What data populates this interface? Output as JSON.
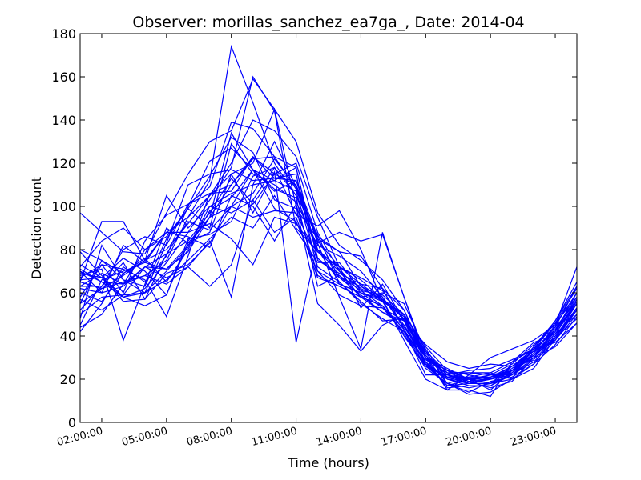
{
  "chart_data": {
    "type": "line",
    "title": "Observer: morillas_sanchez_ea7ga_, Date: 2014-04",
    "xlabel": "Time (hours)",
    "ylabel": "Detection count",
    "xlim": [
      1.0,
      24.0
    ],
    "ylim": [
      0,
      180
    ],
    "yticks": [
      0,
      20,
      40,
      60,
      80,
      100,
      120,
      140,
      160,
      180
    ],
    "xticks": [
      {
        "value": 2,
        "label": "02:00:00"
      },
      {
        "value": 5,
        "label": "05:00:00"
      },
      {
        "value": 8,
        "label": "08:00:00"
      },
      {
        "value": 11,
        "label": "11:00:00"
      },
      {
        "value": 14,
        "label": "14:00:00"
      },
      {
        "value": 17,
        "label": "17:00:00"
      },
      {
        "value": 20,
        "label": "20:00:00"
      },
      {
        "value": 23,
        "label": "23:00:00"
      }
    ],
    "grid": false,
    "line_color": "#0000ff",
    "x": [
      1,
      2,
      3,
      4,
      5,
      6,
      7,
      8,
      9,
      10,
      11,
      12,
      13,
      14,
      15,
      16,
      17,
      18,
      19,
      20,
      21,
      22,
      23,
      24
    ],
    "series": [
      {
        "values": [
          97,
          88,
          79,
          78,
          97,
          115,
          130,
          135,
          159,
          145,
          130,
          97,
          82,
          75,
          66,
          52,
          30,
          22,
          20,
          22,
          22,
          32,
          45,
          60
        ]
      },
      {
        "values": [
          60,
          56,
          69,
          75,
          88,
          95,
          112,
          174,
          148,
          120,
          105,
          87,
          64,
          60,
          53,
          42,
          28,
          17,
          18,
          18,
          20,
          25,
          39,
          55
        ]
      },
      {
        "values": [
          70,
          65,
          58,
          62,
          74,
          88,
          103,
          118,
          160,
          144,
          90,
          79,
          70,
          62,
          57,
          48,
          32,
          22,
          18,
          20,
          24,
          32,
          42,
          56
        ]
      },
      {
        "values": [
          72,
          84,
          90,
          80,
          86,
          99,
          114,
          132,
          125,
          103,
          99,
          85,
          67,
          63,
          58,
          44,
          30,
          24,
          20,
          21,
          26,
          34,
          46,
          62
        ]
      },
      {
        "values": [
          65,
          62,
          68,
          75,
          80,
          92,
          105,
          120,
          140,
          135,
          123,
          95,
          72,
          66,
          57,
          50,
          34,
          20,
          17,
          17,
          22,
          30,
          41,
          55
        ]
      },
      {
        "values": [
          45,
          66,
          70,
          74,
          71,
          82,
          95,
          110,
          123,
          115,
          120,
          88,
          70,
          58,
          51,
          47,
          33,
          18,
          14,
          19,
          21,
          27,
          36,
          49
        ]
      },
      {
        "values": [
          58,
          73,
          60,
          84,
          96,
          101,
          109,
          139,
          136,
          123,
          108,
          80,
          65,
          55,
          48,
          42,
          26,
          18,
          16,
          18,
          24,
          35,
          47,
          63
        ]
      },
      {
        "values": [
          42,
          55,
          72,
          65,
          77,
          100,
          121,
          127,
          117,
          99,
          93,
          70,
          64,
          60,
          56,
          49,
          30,
          24,
          18,
          21,
          24,
          30,
          40,
          53
        ]
      },
      {
        "values": [
          80,
          75,
          66,
          60,
          83,
          110,
          115,
          117,
          112,
          113,
          115,
          70,
          59,
          54,
          53,
          47,
          26,
          22,
          19,
          22,
          27,
          36,
          44,
          56
        ]
      },
      {
        "values": [
          68,
          71,
          38,
          64,
          90,
          83,
          95,
          100,
          117,
          108,
          104,
          63,
          68,
          61,
          54,
          43,
          27,
          21,
          23,
          22,
          24,
          33,
          43,
          58
        ]
      },
      {
        "values": [
          52,
          63,
          80,
          86,
          82,
          101,
          106,
          110,
          122,
          123,
          118,
          76,
          67,
          59,
          51,
          45,
          30,
          21,
          18,
          18,
          22,
          28,
          38,
          50
        ]
      },
      {
        "values": [
          48,
          82,
          66,
          63,
          85,
          99,
          90,
          129,
          115,
          110,
          102,
          82,
          77,
          70,
          58,
          45,
          27,
          17,
          20,
          18,
          26,
          31,
          41,
          50
        ]
      },
      {
        "values": [
          62,
          60,
          63,
          72,
          78,
          84,
          97,
          113,
          101,
          115,
          110,
          85,
          79,
          77,
          62,
          52,
          31,
          22,
          19,
          16,
          19,
          30,
          35,
          46
        ]
      },
      {
        "values": [
          55,
          75,
          69,
          76,
          65,
          80,
          98,
          104,
          117,
          107,
          112,
          86,
          79,
          63,
          56,
          50,
          35,
          24,
          22,
          20,
          23,
          31,
          38,
          53
        ]
      },
      {
        "values": [
          73,
          67,
          56,
          57,
          78,
          93,
          89,
          100,
          95,
          98,
          97,
          76,
          68,
          58,
          60,
          55,
          33,
          23,
          23,
          23,
          20,
          35,
          46,
          58
        ]
      },
      {
        "values": [
          66,
          67,
          76,
          70,
          59,
          85,
          87,
          93,
          114,
          118,
          96,
          91,
          98,
          80,
          56,
          40,
          26,
          21,
          21,
          23,
          28,
          34,
          42,
          55
        ]
      },
      {
        "values": [
          70,
          60,
          82,
          74,
          88,
          88,
          92,
          85,
          73,
          95,
          92,
          79,
          72,
          67,
          61,
          47,
          36,
          28,
          25,
          27,
          26,
          33,
          38,
          52
        ]
      },
      {
        "values": [
          63,
          69,
          64,
          80,
          88,
          86,
          81,
          105,
          100,
          84,
          101,
          68,
          63,
          58,
          54,
          43,
          28,
          16,
          17,
          17,
          23,
          31,
          39,
          48
        ]
      },
      {
        "values": [
          57,
          52,
          59,
          60,
          70,
          81,
          100,
          106,
          110,
          112,
          107,
          72,
          65,
          56,
          47,
          48,
          30,
          18,
          13,
          14,
          20,
          27,
          40,
          52
        ]
      },
      {
        "values": [
          67,
          73,
          71,
          66,
          49,
          77,
          106,
          107,
          123,
          113,
          112,
          83,
          58,
          34,
          88,
          58,
          29,
          23,
          20,
          15,
          24,
          31,
          43,
          57
        ]
      },
      {
        "values": [
          79,
          68,
          58,
          54,
          59,
          83,
          88,
          115,
          97,
          116,
          37,
          83,
          88,
          84,
          87,
          58,
          31,
          22,
          19,
          20,
          26,
          34,
          37,
          46
        ]
      },
      {
        "values": [
          71,
          65,
          64,
          68,
          64,
          72,
          84,
          58,
          110,
          130,
          109,
          84,
          72,
          53,
          64,
          47,
          30,
          25,
          20,
          20,
          22,
          29,
          39,
          53
        ]
      },
      {
        "values": [
          50,
          58,
          59,
          72,
          71,
          79,
          95,
          134,
          117,
          112,
          118,
          75,
          69,
          64,
          62,
          43,
          22,
          22,
          24,
          25,
          29,
          34,
          43,
          55
        ]
      },
      {
        "values": [
          44,
          50,
          64,
          72,
          67,
          72,
          63,
          73,
          103,
          88,
          95,
          67,
          63,
          58,
          54,
          41,
          25,
          18,
          21,
          21,
          24,
          31,
          42,
          60
        ]
      },
      {
        "values": [
          63,
          63,
          74,
          57,
          69,
          73,
          83,
          100,
          106,
          122,
          109,
          80,
          71,
          60,
          57,
          48,
          28,
          20,
          18,
          20,
          25,
          33,
          44,
          63
        ]
      },
      {
        "values": [
          69,
          67,
          58,
          60,
          66,
          75,
          85,
          95,
          90,
          105,
          89,
          74,
          74,
          61,
          59,
          50,
          27,
          20,
          20,
          21,
          23,
          34,
          47,
          65
        ]
      },
      {
        "values": [
          55,
          62,
          65,
          68,
          75,
          95,
          105,
          115,
          120,
          145,
          100,
          55,
          45,
          33,
          45,
          50,
          30,
          15,
          22,
          30,
          34,
          38,
          45,
          72
        ]
      },
      {
        "values": [
          65,
          93,
          93,
          75,
          105,
          90,
          100,
          97,
          103,
          118,
          105,
          79,
          72,
          64,
          57,
          38,
          20,
          15,
          15,
          12,
          28,
          37,
          41,
          55
        ]
      }
    ]
  }
}
